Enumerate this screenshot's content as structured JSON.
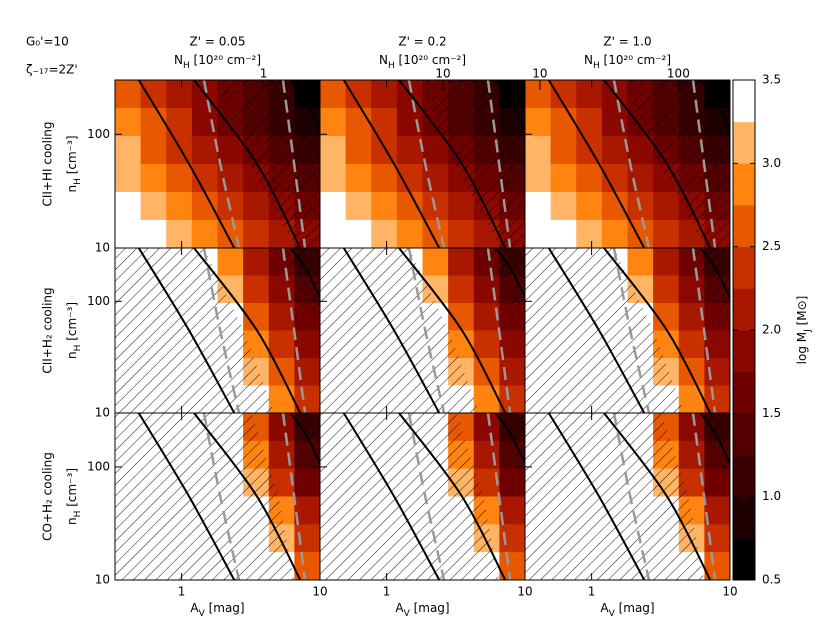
{
  "chart_data": {
    "type": "contourf",
    "header": [
      "G₀'=10",
      "ζ₋₁₇=2Z'"
    ],
    "xlabel": {
      "main": "A",
      "sub": "V",
      "rest": " [mag]"
    },
    "ylabel": {
      "main": "n",
      "sub": "H",
      "rest": " [cm⁻³]"
    },
    "x2label": {
      "main": "N",
      "sub": "H",
      "rest": " [10²⁰ cm⁻²]"
    },
    "xlim": [
      0.33,
      10
    ],
    "xticks": [
      1,
      10
    ],
    "log_x": true,
    "ylim": [
      10,
      300
    ],
    "yticks": [
      10,
      100
    ],
    "log_y": true,
    "columns": [
      {
        "title": "Z' = 0.05",
        "x2lim": [
          0.085,
          2.55
        ],
        "x2ticks": [
          1
        ]
      },
      {
        "title": "Z' = 0.2",
        "x2lim": [
          1.3,
          39
        ],
        "x2ticks": [
          10
        ]
      },
      {
        "title": "Z' = 1.0",
        "x2lim": [
          7.8,
          236
        ],
        "x2ticks": [
          10,
          100
        ]
      }
    ],
    "rows": [
      {
        "label": "CII+HI cooling",
        "z": [
          [
            2.55,
            2.29,
            2.04,
            1.77,
            1.52,
            1.25,
            1.0,
            0.73
          ],
          [
            2.77,
            2.51,
            2.26,
            1.99,
            1.74,
            1.47,
            1.22,
            0.95
          ],
          [
            3.0,
            2.74,
            2.49,
            2.22,
            1.97,
            1.7,
            1.45,
            1.18
          ],
          [
            3.21,
            2.95,
            2.7,
            2.43,
            2.18,
            1.91,
            1.66,
            1.39
          ],
          [
            3.44,
            3.18,
            2.93,
            2.66,
            2.41,
            2.14,
            1.89,
            1.62
          ],
          [
            3.66,
            3.4,
            3.15,
            2.88,
            2.63,
            2.36,
            2.11,
            1.84
          ]
        ],
        "hatch": [
          {
            "x": [
              1.7,
              3.1,
              6.6,
              10,
              10
            ],
            "y": [
              300,
              55,
              10,
              10,
              300
            ]
          }
        ]
      },
      {
        "label": "CII+H₂ cooling",
        "z": [
          [
            3.6,
            3.6,
            3.6,
            3.34,
            2.8,
            2.23,
            1.69,
            1.12
          ],
          [
            3.6,
            3.6,
            3.6,
            3.58,
            3.04,
            2.47,
            1.93,
            1.36
          ],
          [
            3.6,
            3.6,
            3.6,
            3.6,
            3.28,
            2.71,
            2.17,
            1.6
          ],
          [
            3.6,
            3.6,
            3.6,
            3.6,
            3.52,
            2.95,
            2.41,
            1.84
          ],
          [
            3.6,
            3.6,
            3.6,
            3.6,
            3.6,
            3.19,
            2.65,
            2.08
          ],
          [
            3.6,
            3.6,
            3.6,
            3.6,
            3.6,
            3.43,
            2.89,
            2.32
          ]
        ],
        "hatch": [
          {
            "x": [
              0.33,
              0.33,
              1.45,
              2.8,
              4.7
            ],
            "y": [
              10,
              300,
              300,
              55,
              10
            ]
          },
          {
            "x": [
              5,
              10,
              10
            ],
            "y": [
              300,
              300,
              55
            ]
          }
        ]
      },
      {
        "label": "CO+H₂ cooling",
        "z": [
          [
            3.6,
            3.6,
            3.6,
            3.6,
            3.37,
            2.61,
            1.89,
            1.13
          ],
          [
            3.6,
            3.6,
            3.6,
            3.6,
            3.6,
            2.89,
            2.17,
            1.41
          ],
          [
            3.6,
            3.6,
            3.6,
            3.6,
            3.6,
            3.21,
            2.49,
            1.73
          ],
          [
            3.6,
            3.6,
            3.6,
            3.6,
            3.6,
            3.49,
            2.77,
            2.01
          ],
          [
            3.6,
            3.6,
            3.6,
            3.6,
            3.6,
            3.6,
            3.09,
            2.33
          ],
          [
            3.6,
            3.6,
            3.6,
            3.6,
            3.6,
            3.6,
            3.37,
            2.61
          ]
        ],
        "hatch": [
          {
            "x": [
              0.33,
              0.33,
              3.2,
              5,
              6.5
            ],
            "y": [
              10,
              300,
              300,
              55,
              10
            ]
          },
          {
            "x": [
              6,
              10,
              10
            ],
            "y": [
              300,
              300,
              100
            ]
          }
        ]
      }
    ],
    "solid_lines": [
      {
        "x": [
          0.49,
          1.13,
          2.4
        ],
        "y": [
          300,
          55,
          10
        ]
      },
      {
        "x": [
          1.23,
          3.5,
          7.2
        ],
        "y": [
          300,
          55,
          10
        ]
      },
      {
        "x": [
          6.1,
          7.8,
          10
        ],
        "y": [
          300,
          200,
          108
        ]
      }
    ],
    "dashed_lines": [
      {
        "x": [
          1.45,
          1.9,
          2.6
        ],
        "y": [
          300,
          55,
          10
        ]
      },
      {
        "x": [
          5.4,
          6.5,
          7.8
        ],
        "y": [
          300,
          55,
          10
        ]
      }
    ],
    "line_color": "#000000",
    "dash_color": "#999999",
    "colorbar": {
      "label": {
        "main": "log M",
        "sub": "J",
        "rest": " [M⊙]"
      },
      "lim": [
        0.5,
        3.5
      ],
      "ticks": [
        0.5,
        {
          "value": 1,
          "label": "1.0"
        },
        1.5,
        {
          "value": 2,
          "label": "2.0"
        },
        2.5,
        {
          "value": 3,
          "label": "3.0"
        },
        3.5
      ],
      "levels": [
        0.5,
        0.75,
        1.0,
        1.25,
        1.5,
        1.75,
        2.0,
        2.25,
        2.5,
        2.75,
        3.0,
        3.25
      ],
      "colors": [
        "#000000",
        "#1e0000",
        "#380000",
        "#520000",
        "#6e0000",
        "#8a0800",
        "#a81800",
        "#c83000",
        "#e85800",
        "#ff8410",
        "#ffb565",
        "#ffffff"
      ],
      "above_color": "#ffffff"
    }
  }
}
